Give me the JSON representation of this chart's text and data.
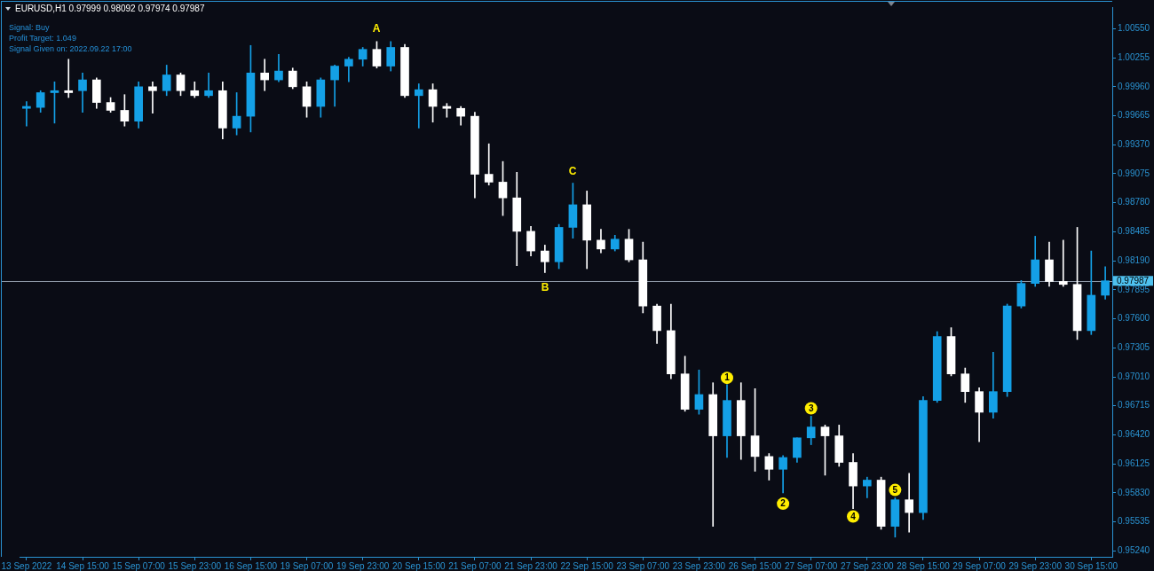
{
  "chart_data": {
    "type": "candlestick",
    "title": "EURUSD,H1 0.97999 0.98092 0.97974 0.97987",
    "annotations": [
      "Signal: Buy",
      "Profit Target: 1.049",
      "Signal Given on: 2022.09.22 17:00",
      "A",
      "B",
      "C"
    ],
    "categories": [
      "13 Sep 2022",
      null,
      null,
      null,
      "14 Sep 15:00",
      null,
      null,
      null,
      "15 Sep 07:00",
      null,
      null,
      null,
      "15 Sep 23:00",
      null,
      null,
      null,
      "16 Sep 15:00",
      null,
      null,
      null,
      "19 Sep 07:00",
      null,
      null,
      null,
      "19 Sep 23:00",
      null,
      null,
      null,
      "20 Sep 15:00",
      null,
      null,
      null,
      "21 Sep 07:00",
      null,
      null,
      null,
      "21 Sep 23:00",
      null,
      null,
      null,
      "22 Sep 15:00",
      null,
      null,
      null,
      "23 Sep 07:00",
      null,
      null,
      null,
      "23 Sep 23:00",
      null,
      null,
      null,
      "26 Sep 15:00",
      null,
      null,
      null,
      "27 Sep 07:00",
      null,
      null,
      null,
      "27 Sep 23:00",
      null,
      null,
      null,
      "28 Sep 15:00",
      null,
      null,
      null,
      "29 Sep 07:00",
      null,
      null,
      null,
      "29 Sep 23:00",
      null,
      null,
      null,
      "30 Sep 15:00",
      null
    ],
    "ohlc": [
      [
        0.9974,
        0.9981,
        0.9956,
        0.9976
      ],
      [
        0.9975,
        0.9992,
        0.997,
        0.999
      ],
      [
        0.999,
        1.0001,
        0.9959,
        0.9992
      ],
      [
        0.9992,
        1.0024,
        0.9985,
        0.999
      ],
      [
        0.9992,
        1.001,
        0.997,
        1.0003
      ],
      [
        1.0003,
        1.0005,
        0.9974,
        0.998
      ],
      [
        0.998,
        0.9985,
        0.997,
        0.9972
      ],
      [
        0.9972,
        0.9988,
        0.9956,
        0.9961
      ],
      [
        0.9961,
        1.0001,
        0.9954,
        0.9996
      ],
      [
        0.9996,
        1.0001,
        0.9969,
        0.9992
      ],
      [
        0.9992,
        1.0018,
        0.9987,
        1.0008
      ],
      [
        1.0008,
        1.001,
        0.9987,
        0.9992
      ],
      [
        0.9992,
        1.0001,
        0.9985,
        0.9987
      ],
      [
        0.9987,
        1.001,
        0.9985,
        0.9992
      ],
      [
        0.9992,
        1.0001,
        0.9943,
        0.9954
      ],
      [
        0.9954,
        0.999,
        0.9947,
        0.9966
      ],
      [
        0.9966,
        1.0038,
        0.995,
        1.001
      ],
      [
        1.001,
        1.0024,
        0.9992,
        1.0003
      ],
      [
        1.0003,
        1.0029,
        1.0001,
        1.0012
      ],
      [
        1.0012,
        1.0015,
        0.9994,
        0.9996
      ],
      [
        0.9996,
        1.0001,
        0.9965,
        0.9976
      ],
      [
        0.9976,
        1.0005,
        0.9965,
        1.0003
      ],
      [
        1.0003,
        1.0018,
        0.9976,
        1.0017
      ],
      [
        1.0017,
        1.0026,
        1.0001,
        1.0024
      ],
      [
        1.0024,
        1.0036,
        1.0017,
        1.0034
      ],
      [
        1.0034,
        1.0042,
        1.0015,
        1.0017
      ],
      [
        1.0017,
        1.0042,
        1.0012,
        1.0036
      ],
      [
        1.0036,
        1.0039,
        0.9985,
        0.9987
      ],
      [
        0.9987,
        0.9999,
        0.9954,
        0.9993
      ],
      [
        0.9993,
        0.9999,
        0.996,
        0.9976
      ],
      [
        0.9976,
        0.9979,
        0.9965,
        0.9974
      ],
      [
        0.9974,
        0.9976,
        0.9957,
        0.9966
      ],
      [
        0.9966,
        0.997,
        0.9883,
        0.9907
      ],
      [
        0.9907,
        0.9938,
        0.9896,
        0.9899
      ],
      [
        0.9899,
        0.992,
        0.9865,
        0.9883
      ],
      [
        0.9883,
        0.9909,
        0.9814,
        0.9849
      ],
      [
        0.9849,
        0.9854,
        0.9824,
        0.9829
      ],
      [
        0.9829,
        0.9835,
        0.9807,
        0.9818
      ],
      [
        0.9818,
        0.9856,
        0.9811,
        0.9853
      ],
      [
        0.9853,
        0.9898,
        0.9842,
        0.9876
      ],
      [
        0.9876,
        0.989,
        0.9811,
        0.984
      ],
      [
        0.984,
        0.9851,
        0.9827,
        0.9831
      ],
      [
        0.9831,
        0.9845,
        0.9829,
        0.9841
      ],
      [
        0.9841,
        0.9851,
        0.9818,
        0.982
      ],
      [
        0.982,
        0.9838,
        0.9766,
        0.9773
      ],
      [
        0.9773,
        0.9775,
        0.9735,
        0.9748
      ],
      [
        0.9748,
        0.9775,
        0.9699,
        0.9704
      ],
      [
        0.9704,
        0.9722,
        0.9666,
        0.9668
      ],
      [
        0.9668,
        0.9708,
        0.9663,
        0.9683
      ],
      [
        0.9683,
        0.9695,
        0.9549,
        0.9641
      ],
      [
        0.9641,
        0.9693,
        0.9619,
        0.9677
      ],
      [
        0.9677,
        0.9695,
        0.9617,
        0.9641
      ],
      [
        0.9641,
        0.9689,
        0.9605,
        0.962
      ],
      [
        0.962,
        0.9623,
        0.9596,
        0.9607
      ],
      [
        0.9607,
        0.9621,
        0.9583,
        0.9619
      ],
      [
        0.9619,
        0.9639,
        0.9614,
        0.9639
      ],
      [
        0.9639,
        0.9661,
        0.9632,
        0.965
      ],
      [
        0.965,
        0.9652,
        0.9601,
        0.9641
      ],
      [
        0.9641,
        0.9652,
        0.961,
        0.9614
      ],
      [
        0.9614,
        0.9623,
        0.9567,
        0.959
      ],
      [
        0.959,
        0.9599,
        0.9578,
        0.9596
      ],
      [
        0.9596,
        0.9599,
        0.9546,
        0.9549
      ],
      [
        0.9549,
        0.9578,
        0.9538,
        0.9576
      ],
      [
        0.9576,
        0.9603,
        0.9543,
        0.9563
      ],
      [
        0.9563,
        0.9681,
        0.9556,
        0.9677
      ],
      [
        0.9677,
        0.9747,
        0.9675,
        0.9742
      ],
      [
        0.9742,
        0.9751,
        0.9702,
        0.9704
      ],
      [
        0.9704,
        0.971,
        0.9675,
        0.9686
      ],
      [
        0.9686,
        0.969,
        0.9635,
        0.9665
      ],
      [
        0.9665,
        0.9726,
        0.9659,
        0.9686
      ],
      [
        0.9686,
        0.9775,
        0.9681,
        0.9773
      ],
      [
        0.9773,
        0.9799,
        0.9771,
        0.9796
      ],
      [
        0.9796,
        0.9844,
        0.9793,
        0.982
      ],
      [
        0.982,
        0.9838,
        0.9793,
        0.9798
      ],
      [
        0.9798,
        0.984,
        0.9793,
        0.9795
      ],
      [
        0.9795,
        0.9853,
        0.9739,
        0.9748
      ],
      [
        0.9748,
        0.9829,
        0.9744,
        0.9784
      ],
      [
        0.9784,
        0.9813,
        0.978,
        0.97987
      ]
    ],
    "colors": [
      "#14a0e6",
      "#14a0e6",
      "#14a0e6",
      "#ffffff",
      "#14a0e6",
      "#ffffff",
      "#ffffff",
      "#ffffff",
      "#14a0e6",
      "#ffffff",
      "#14a0e6",
      "#ffffff",
      "#ffffff",
      "#14a0e6",
      "#ffffff",
      "#14a0e6",
      "#14a0e6",
      "#ffffff",
      "#14a0e6",
      "#ffffff",
      "#ffffff",
      "#14a0e6",
      "#14a0e6",
      "#14a0e6",
      "#14a0e6",
      "#ffffff",
      "#14a0e6",
      "#ffffff",
      "#14a0e6",
      "#ffffff",
      "#ffffff",
      "#ffffff",
      "#ffffff",
      "#ffffff",
      "#ffffff",
      "#ffffff",
      "#ffffff",
      "#ffffff",
      "#14a0e6",
      "#14a0e6",
      "#ffffff",
      "#ffffff",
      "#14a0e6",
      "#ffffff",
      "#ffffff",
      "#ffffff",
      "#ffffff",
      "#ffffff",
      "#14a0e6",
      "#ffffff",
      "#14a0e6",
      "#ffffff",
      "#ffffff",
      "#ffffff",
      "#14a0e6",
      "#14a0e6",
      "#14a0e6",
      "#ffffff",
      "#ffffff",
      "#ffffff",
      "#14a0e6",
      "#ffffff",
      "#14a0e6",
      "#ffffff",
      "#14a0e6",
      "#14a0e6",
      "#ffffff",
      "#ffffff",
      "#ffffff",
      "#14a0e6",
      "#14a0e6",
      "#14a0e6",
      "#14a0e6",
      "#ffffff",
      "#ffffff",
      "#ffffff",
      "#14a0e6",
      "#14a0e6"
    ],
    "series": [
      {
        "type": "scatter",
        "name": "1",
        "color": "#ffee00",
        "marker": "circle",
        "values": [
          null,
          null,
          null,
          null,
          null,
          null,
          null,
          null,
          null,
          null,
          null,
          null,
          null,
          null,
          null,
          null,
          null,
          null,
          null,
          null,
          null,
          null,
          null,
          null,
          null,
          null,
          null,
          null,
          null,
          null,
          null,
          null,
          null,
          null,
          null,
          null,
          null,
          null,
          null,
          null,
          null,
          null,
          null,
          null,
          null,
          null,
          null,
          null,
          null,
          null,
          0.97,
          null,
          null,
          null,
          null,
          null,
          null,
          null,
          null,
          null,
          null,
          null,
          null,
          null,
          null,
          null,
          null,
          null,
          null,
          null,
          null,
          null,
          null,
          null,
          null,
          null,
          null,
          null
        ]
      },
      {
        "type": "scatter",
        "name": "2",
        "color": "#ffee00",
        "marker": "circle",
        "values": [
          null,
          null,
          null,
          null,
          null,
          null,
          null,
          null,
          null,
          null,
          null,
          null,
          null,
          null,
          null,
          null,
          null,
          null,
          null,
          null,
          null,
          null,
          null,
          null,
          null,
          null,
          null,
          null,
          null,
          null,
          null,
          null,
          null,
          null,
          null,
          null,
          null,
          null,
          null,
          null,
          null,
          null,
          null,
          null,
          null,
          null,
          null,
          null,
          null,
          null,
          null,
          null,
          null,
          null,
          0.9572,
          null,
          null,
          null,
          null,
          null,
          null,
          null,
          null,
          null,
          null,
          null,
          null,
          null,
          null,
          null,
          null,
          null,
          null,
          null,
          null,
          null,
          null,
          null
        ]
      },
      {
        "type": "scatter",
        "name": "3",
        "color": "#ffee00",
        "marker": "circle",
        "values": [
          null,
          null,
          null,
          null,
          null,
          null,
          null,
          null,
          null,
          null,
          null,
          null,
          null,
          null,
          null,
          null,
          null,
          null,
          null,
          null,
          null,
          null,
          null,
          null,
          null,
          null,
          null,
          null,
          null,
          null,
          null,
          null,
          null,
          null,
          null,
          null,
          null,
          null,
          null,
          null,
          null,
          null,
          null,
          null,
          null,
          null,
          null,
          null,
          null,
          null,
          null,
          null,
          null,
          null,
          null,
          null,
          0.9669,
          null,
          null,
          null,
          null,
          null,
          null,
          null,
          null,
          null,
          null,
          null,
          null,
          null,
          null,
          null,
          null,
          null,
          null,
          null,
          null,
          null
        ]
      },
      {
        "type": "scatter",
        "name": "4",
        "color": "#ffee00",
        "marker": "circle",
        "values": [
          null,
          null,
          null,
          null,
          null,
          null,
          null,
          null,
          null,
          null,
          null,
          null,
          null,
          null,
          null,
          null,
          null,
          null,
          null,
          null,
          null,
          null,
          null,
          null,
          null,
          null,
          null,
          null,
          null,
          null,
          null,
          null,
          null,
          null,
          null,
          null,
          null,
          null,
          null,
          null,
          null,
          null,
          null,
          null,
          null,
          null,
          null,
          null,
          null,
          null,
          null,
          null,
          null,
          null,
          null,
          null,
          null,
          null,
          null,
          0.9559,
          null,
          null,
          null,
          null,
          null,
          null,
          null,
          null,
          null,
          null,
          null,
          null,
          null,
          null,
          null,
          null,
          null,
          null
        ]
      },
      {
        "type": "scatter",
        "name": "5",
        "color": "#ffee00",
        "marker": "circle",
        "values": [
          null,
          null,
          null,
          null,
          null,
          null,
          null,
          null,
          null,
          null,
          null,
          null,
          null,
          null,
          null,
          null,
          null,
          null,
          null,
          null,
          null,
          null,
          null,
          null,
          null,
          null,
          null,
          null,
          null,
          null,
          null,
          null,
          null,
          null,
          null,
          null,
          null,
          null,
          null,
          null,
          null,
          null,
          null,
          null,
          null,
          null,
          null,
          null,
          null,
          null,
          null,
          null,
          null,
          null,
          null,
          null,
          null,
          null,
          null,
          null,
          null,
          null,
          0.9586,
          null,
          null,
          null,
          null,
          null,
          null,
          null,
          null,
          null,
          null,
          null,
          null,
          null,
          null,
          null
        ]
      }
    ],
    "ylim": [
      0.9518,
      1.0077
    ],
    "yticks": [
      {
        "value": 1.0055,
        "label": "1.00550"
      },
      1.00255,
      {
        "value": 0.9996,
        "label": "0.99960"
      },
      0.99665,
      {
        "value": 0.9937,
        "label": "0.99370"
      },
      0.99075,
      {
        "value": 0.9878,
        "label": "0.98780"
      },
      0.98485,
      {
        "value": 0.9819,
        "label": "0.98190"
      },
      0.97895,
      {
        "value": 0.976,
        "label": "0.97600"
      },
      0.97305,
      {
        "value": 0.9701,
        "label": "0.97010"
      },
      0.96715,
      {
        "value": 0.9642,
        "label": "0.96420"
      },
      0.96125,
      {
        "value": 0.9583,
        "label": "0.95830"
      },
      0.95535,
      {
        "value": 0.9524,
        "label": "0.95240"
      }
    ],
    "ref_lines": [
      {
        "axis": "y",
        "value": 0.97987,
        "label": "0.97987",
        "color": "#8d98a6"
      }
    ],
    "grid": false,
    "legend": false
  }
}
